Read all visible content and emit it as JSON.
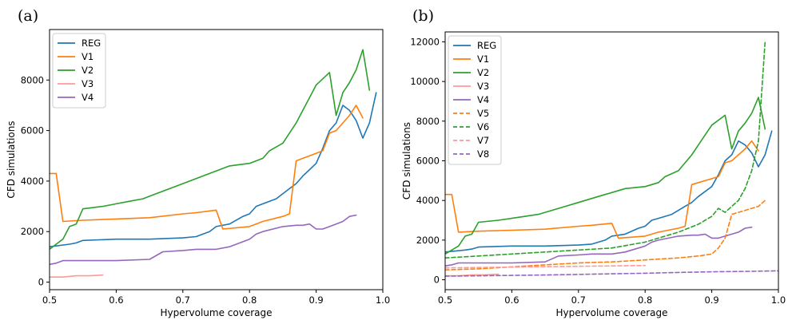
{
  "chart_data": [
    {
      "panel": "(a)",
      "type": "line",
      "xlabel": "Hypervolume coverage",
      "ylabel": "CFD simulations",
      "xlim": [
        0.5,
        1.0
      ],
      "ylim": [
        -300,
        10000
      ],
      "xticks": [
        0.5,
        0.6,
        0.7,
        0.8,
        0.9,
        1.0
      ],
      "xtick_labels": [
        "0.5",
        "0.6",
        "0.7",
        "0.8",
        "0.9",
        "1.0"
      ],
      "yticks": [
        0,
        2000,
        4000,
        6000,
        8000
      ],
      "ytick_labels": [
        "0",
        "2000",
        "4000",
        "6000",
        "8000"
      ],
      "grid": false,
      "legend_position": "top-left",
      "series": [
        {
          "name": "REG",
          "color": "#1f77b4",
          "dash": "solid",
          "x": [
            0.5,
            0.53,
            0.54,
            0.55,
            0.6,
            0.65,
            0.7,
            0.72,
            0.74,
            0.75,
            0.77,
            0.79,
            0.8,
            0.81,
            0.82,
            0.84,
            0.85,
            0.86,
            0.87,
            0.88,
            0.9,
            0.91,
            0.92,
            0.93,
            0.94,
            0.95,
            0.96,
            0.97,
            0.98,
            0.99
          ],
          "y": [
            1400,
            1500,
            1550,
            1650,
            1700,
            1700,
            1750,
            1800,
            2000,
            2200,
            2300,
            2600,
            2700,
            3000,
            3100,
            3300,
            3500,
            3700,
            3900,
            4200,
            4700,
            5300,
            6000,
            6300,
            7000,
            6800,
            6400,
            5700,
            6300,
            7500
          ]
        },
        {
          "name": "V1",
          "color": "#ff7f0e",
          "dash": "solid",
          "x": [
            0.5,
            0.51,
            0.52,
            0.55,
            0.6,
            0.65,
            0.7,
            0.72,
            0.75,
            0.76,
            0.8,
            0.82,
            0.85,
            0.86,
            0.87,
            0.88,
            0.9,
            0.91,
            0.92,
            0.93,
            0.95,
            0.96,
            0.97
          ],
          "y": [
            4300,
            4300,
            2400,
            2450,
            2500,
            2550,
            2700,
            2750,
            2850,
            2100,
            2200,
            2400,
            2600,
            2700,
            4800,
            4900,
            5100,
            5200,
            5900,
            6000,
            6600,
            7000,
            6500
          ]
        },
        {
          "name": "V2",
          "color": "#2ca02c",
          "dash": "solid",
          "x": [
            0.5,
            0.51,
            0.52,
            0.53,
            0.54,
            0.55,
            0.58,
            0.6,
            0.62,
            0.64,
            0.65,
            0.7,
            0.72,
            0.74,
            0.75,
            0.77,
            0.8,
            0.82,
            0.83,
            0.85,
            0.86,
            0.87,
            0.88,
            0.9,
            0.92,
            0.93,
            0.94,
            0.95,
            0.96,
            0.97,
            0.98
          ],
          "y": [
            1300,
            1500,
            1700,
            2200,
            2300,
            2900,
            3000,
            3100,
            3200,
            3300,
            3400,
            3900,
            4100,
            4300,
            4400,
            4600,
            4700,
            4900,
            5200,
            5500,
            5900,
            6300,
            6800,
            7800,
            8300,
            6600,
            7500,
            7900,
            8400,
            9200,
            7600
          ]
        },
        {
          "name": "V3",
          "color": "#ff9896",
          "dash": "solid",
          "x": [
            0.5,
            0.52,
            0.54,
            0.55,
            0.56,
            0.58
          ],
          "y": [
            200,
            200,
            250,
            250,
            250,
            280
          ]
        },
        {
          "name": "V4",
          "color": "#9467bd",
          "dash": "solid",
          "x": [
            0.5,
            0.51,
            0.52,
            0.55,
            0.6,
            0.65,
            0.67,
            0.7,
            0.72,
            0.75,
            0.77,
            0.79,
            0.8,
            0.81,
            0.82,
            0.85,
            0.87,
            0.88,
            0.89,
            0.9,
            0.91,
            0.92,
            0.93,
            0.94,
            0.95,
            0.96
          ],
          "y": [
            700,
            750,
            850,
            850,
            850,
            900,
            1200,
            1250,
            1300,
            1300,
            1400,
            1600,
            1700,
            1900,
            2000,
            2200,
            2250,
            2250,
            2300,
            2100,
            2100,
            2200,
            2300,
            2400,
            2600,
            2650
          ]
        }
      ]
    },
    {
      "panel": "(b)",
      "type": "line",
      "xlabel": "Hypervolume coverage",
      "ylabel": "CFD simulations",
      "xlim": [
        0.5,
        1.0
      ],
      "ylim": [
        -500,
        12500
      ],
      "xticks": [
        0.5,
        0.6,
        0.7,
        0.8,
        0.9,
        1.0
      ],
      "xtick_labels": [
        "0.5",
        "0.6",
        "0.7",
        "0.8",
        "0.9",
        "1.0"
      ],
      "yticks": [
        0,
        2000,
        4000,
        6000,
        8000,
        10000,
        12000
      ],
      "ytick_labels": [
        "0",
        "2000",
        "4000",
        "6000",
        "8000",
        "10000",
        "12000"
      ],
      "grid": false,
      "legend_position": "top-left",
      "series": [
        {
          "name": "REG",
          "color": "#1f77b4",
          "dash": "solid",
          "x": [
            0.5,
            0.53,
            0.54,
            0.55,
            0.6,
            0.65,
            0.7,
            0.72,
            0.74,
            0.75,
            0.77,
            0.79,
            0.8,
            0.81,
            0.82,
            0.84,
            0.85,
            0.86,
            0.87,
            0.88,
            0.9,
            0.91,
            0.92,
            0.93,
            0.94,
            0.95,
            0.96,
            0.97,
            0.98,
            0.99
          ],
          "y": [
            1400,
            1500,
            1550,
            1650,
            1700,
            1700,
            1750,
            1800,
            2000,
            2200,
            2300,
            2600,
            2700,
            3000,
            3100,
            3300,
            3500,
            3700,
            3900,
            4200,
            4700,
            5300,
            6000,
            6300,
            7000,
            6800,
            6400,
            5700,
            6300,
            7500
          ]
        },
        {
          "name": "V1",
          "color": "#ff7f0e",
          "dash": "solid",
          "x": [
            0.5,
            0.51,
            0.52,
            0.55,
            0.6,
            0.65,
            0.7,
            0.72,
            0.75,
            0.76,
            0.8,
            0.82,
            0.85,
            0.86,
            0.87,
            0.88,
            0.9,
            0.91,
            0.92,
            0.93,
            0.95,
            0.96,
            0.97
          ],
          "y": [
            4300,
            4300,
            2400,
            2450,
            2500,
            2550,
            2700,
            2750,
            2850,
            2100,
            2200,
            2400,
            2600,
            2700,
            4800,
            4900,
            5100,
            5200,
            5900,
            6000,
            6600,
            7000,
            6500
          ]
        },
        {
          "name": "V2",
          "color": "#2ca02c",
          "dash": "solid",
          "x": [
            0.5,
            0.51,
            0.52,
            0.53,
            0.54,
            0.55,
            0.58,
            0.6,
            0.62,
            0.64,
            0.65,
            0.7,
            0.72,
            0.74,
            0.75,
            0.77,
            0.8,
            0.82,
            0.83,
            0.85,
            0.86,
            0.87,
            0.88,
            0.9,
            0.92,
            0.93,
            0.94,
            0.95,
            0.96,
            0.97,
            0.98
          ],
          "y": [
            1300,
            1500,
            1700,
            2200,
            2300,
            2900,
            3000,
            3100,
            3200,
            3300,
            3400,
            3900,
            4100,
            4300,
            4400,
            4600,
            4700,
            4900,
            5200,
            5500,
            5900,
            6300,
            6800,
            7800,
            8300,
            6600,
            7500,
            7900,
            8400,
            9200,
            7600
          ]
        },
        {
          "name": "V3",
          "color": "#ff9896",
          "dash": "solid",
          "x": [
            0.5,
            0.52,
            0.54,
            0.55,
            0.56,
            0.58
          ],
          "y": [
            200,
            200,
            250,
            250,
            250,
            280
          ]
        },
        {
          "name": "V4",
          "color": "#9467bd",
          "dash": "solid",
          "x": [
            0.5,
            0.51,
            0.52,
            0.55,
            0.6,
            0.65,
            0.67,
            0.7,
            0.72,
            0.75,
            0.77,
            0.79,
            0.8,
            0.81,
            0.82,
            0.85,
            0.87,
            0.88,
            0.89,
            0.9,
            0.91,
            0.92,
            0.93,
            0.94,
            0.95,
            0.96
          ],
          "y": [
            700,
            750,
            850,
            850,
            850,
            900,
            1200,
            1250,
            1300,
            1300,
            1400,
            1600,
            1700,
            1900,
            2000,
            2200,
            2250,
            2250,
            2300,
            2100,
            2100,
            2200,
            2300,
            2400,
            2600,
            2650
          ]
        },
        {
          "name": "V5",
          "color": "#ff7f0e",
          "dash": "dashed",
          "x": [
            0.5,
            0.55,
            0.6,
            0.65,
            0.7,
            0.75,
            0.8,
            0.85,
            0.88,
            0.9,
            0.91,
            0.92,
            0.93,
            0.94,
            0.95,
            0.96,
            0.97,
            0.98
          ],
          "y": [
            500,
            550,
            650,
            750,
            850,
            900,
            1000,
            1100,
            1200,
            1300,
            1600,
            2100,
            3300,
            3400,
            3500,
            3600,
            3700,
            4000
          ]
        },
        {
          "name": "V6",
          "color": "#2ca02c",
          "dash": "dashed",
          "x": [
            0.5,
            0.55,
            0.6,
            0.65,
            0.7,
            0.75,
            0.8,
            0.85,
            0.88,
            0.9,
            0.91,
            0.92,
            0.93,
            0.94,
            0.95,
            0.96,
            0.97,
            0.98
          ],
          "y": [
            1100,
            1200,
            1300,
            1400,
            1500,
            1600,
            1900,
            2400,
            2800,
            3200,
            3600,
            3400,
            3700,
            4000,
            4600,
            5500,
            7000,
            12000
          ]
        },
        {
          "name": "V7",
          "color": "#ff9896",
          "dash": "dashed",
          "x": [
            0.5,
            0.55,
            0.6,
            0.65,
            0.7,
            0.75,
            0.8
          ],
          "y": [
            600,
            620,
            640,
            660,
            680,
            700,
            720
          ]
        },
        {
          "name": "V8",
          "color": "#9467bd",
          "dash": "dashed",
          "x": [
            0.5,
            0.55,
            0.6,
            0.65,
            0.7,
            0.75,
            0.8,
            0.85,
            0.9,
            0.95,
            1.0
          ],
          "y": [
            180,
            200,
            220,
            240,
            270,
            300,
            330,
            370,
            400,
            420,
            450
          ]
        }
      ]
    }
  ]
}
